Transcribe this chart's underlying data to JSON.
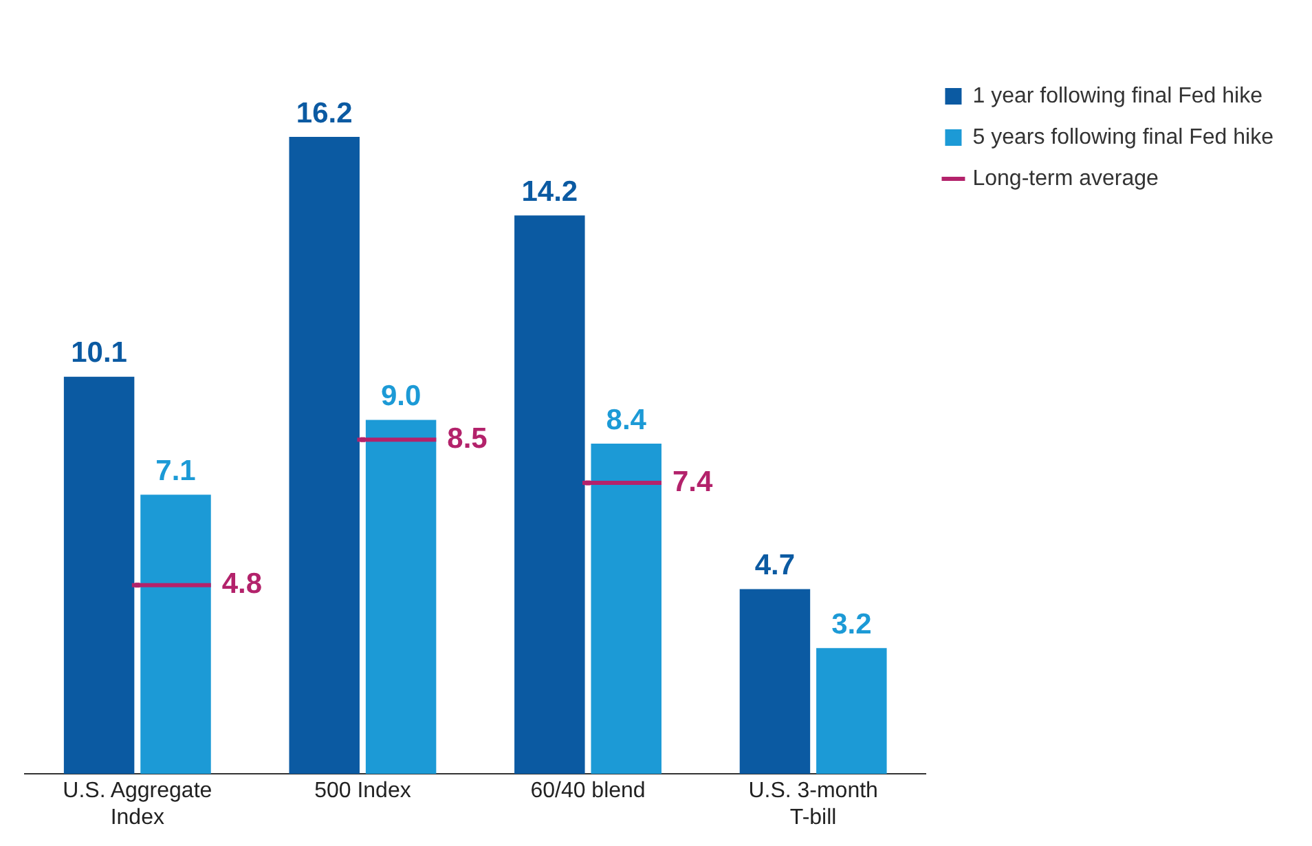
{
  "chart_data": {
    "type": "bar",
    "categories": [
      "U.S. Aggregate Index",
      "500 Index",
      "60/40 blend",
      "U.S. 3-month T-bill"
    ],
    "series": [
      {
        "name": "1 year following final Fed hike",
        "color": "#0b5aa2",
        "values": [
          10.1,
          16.2,
          14.2,
          4.7
        ]
      },
      {
        "name": "5 years following final Fed hike",
        "color": "#1c9ad6",
        "values": [
          7.1,
          9.0,
          8.4,
          3.2
        ],
        "value_labels": [
          "7.1",
          "9.0",
          "8.4",
          "3.2"
        ]
      },
      {
        "name": "Long-term average",
        "type": "scatter",
        "color": "#b3226b",
        "x": [
          "U.S. Aggregate Index",
          "500 Index",
          "60/40 blend"
        ],
        "values": [
          4.8,
          8.5,
          7.4
        ]
      }
    ],
    "data_labels": true,
    "legend": "top right",
    "grid": false
  }
}
